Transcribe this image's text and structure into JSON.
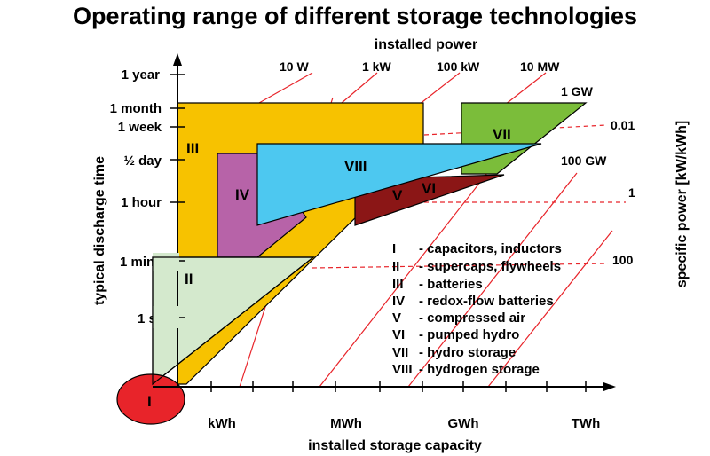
{
  "title": "Operating range of different storage technologies",
  "x_axis": {
    "label": "installed storage capacity",
    "ticks": [
      "kWh",
      "MWh",
      "GWh",
      "TWh"
    ]
  },
  "y_axis": {
    "label": "typical discharge time",
    "ticks": [
      "1 year",
      "1 month",
      "1 week",
      "½ day",
      "1 hour",
      "1 min",
      "1 s"
    ]
  },
  "power_axis": {
    "label": "installed power",
    "lines": [
      "10 W",
      "1 kW",
      "100 kW",
      "10 MW",
      "1 GW",
      "100 GW"
    ]
  },
  "specific_power_axis": {
    "label": "specific power [kW/kWh]",
    "values": [
      "0.01",
      "1",
      "100"
    ]
  },
  "regions": [
    {
      "id": "I",
      "label": "I",
      "color": "#e8242a"
    },
    {
      "id": "II",
      "label": "II",
      "color": "#d4e9cd"
    },
    {
      "id": "III",
      "label": "III",
      "color": "#f7c200"
    },
    {
      "id": "IV",
      "label": "IV",
      "color": "#b763a8"
    },
    {
      "id": "V",
      "label": "V",
      "color": "#8b1616"
    },
    {
      "id": "VI",
      "label": "VI",
      "color": "#8b1616"
    },
    {
      "id": "VII",
      "label": "VII",
      "color": "#7bbd3a"
    },
    {
      "id": "VIII",
      "label": "VIII",
      "color": "#4dc8f0"
    }
  ],
  "legend": [
    {
      "num": "I",
      "text": "- capacitors, inductors"
    },
    {
      "num": "II",
      "text": "- supercaps, flywheels"
    },
    {
      "num": "III",
      "text": "- batteries"
    },
    {
      "num": "IV",
      "text": "- redox-flow batteries"
    },
    {
      "num": "V",
      "text": "- compressed air"
    },
    {
      "num": "VI",
      "text": "- pumped hydro"
    },
    {
      "num": "VII",
      "text": "- hydro storage"
    },
    {
      "num": "VIII",
      "text": "- hydrogen storage"
    }
  ]
}
